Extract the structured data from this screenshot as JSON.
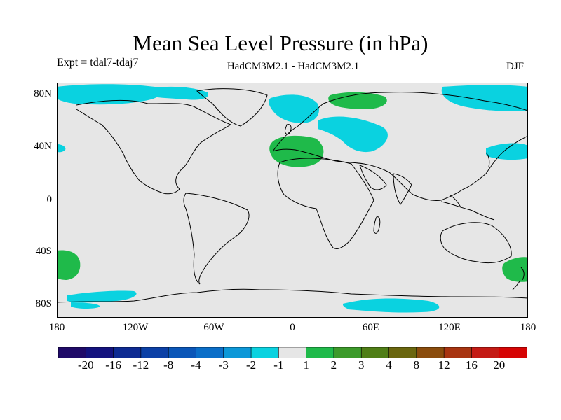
{
  "title": "Mean Sea Level Pressure (in hPa)",
  "expt": "Expt = tdal7-tdaj7",
  "model": "HadCM3M2.1 - HadCM3M2.1",
  "season": "DJF",
  "lat_labels": [
    "80N",
    "40N",
    "0",
    "40S",
    "80S"
  ],
  "lon_labels": [
    "180",
    "120W",
    "60W",
    "0",
    "60E",
    "120E",
    "180"
  ],
  "colorbar": {
    "labels": [
      "-20",
      "-16",
      "-12",
      "-8",
      "-4",
      "-3",
      "-2",
      "-1",
      "1",
      "2",
      "3",
      "4",
      "8",
      "12",
      "16",
      "20"
    ],
    "colors": [
      "#1f0a68",
      "#13127e",
      "#0d2a92",
      "#0b40a6",
      "#0a56b8",
      "#0a6ec8",
      "#0c98d8",
      "#0ad2e0",
      "#e6e6e6",
      "#1fba4a",
      "#3c9a2a",
      "#4f7e16",
      "#6a660e",
      "#8a4c0c",
      "#a83410",
      "#c41a14",
      "#d60404"
    ]
  },
  "map": {
    "background": "#e6e6e6",
    "anomaly_regions": [
      {
        "name": "arctic-pacific-low-west",
        "level": "-2"
      },
      {
        "name": "arctic-pacific-low-east",
        "level": "-2"
      },
      {
        "name": "greenland-low",
        "level": "-2"
      },
      {
        "name": "north-atlantic-low",
        "level": "-2"
      },
      {
        "name": "eurasia-low",
        "level": "-2"
      },
      {
        "name": "north-pacific-low",
        "level": "-2"
      },
      {
        "name": "atlantic-edge-low",
        "level": "-2"
      },
      {
        "name": "southern-ocean-low",
        "level": "-2"
      },
      {
        "name": "siberia-high",
        "level": "2"
      },
      {
        "name": "mediterranean-high",
        "level": "2"
      },
      {
        "name": "south-pacific-high",
        "level": "2"
      },
      {
        "name": "tasman-high",
        "level": "2"
      }
    ]
  }
}
